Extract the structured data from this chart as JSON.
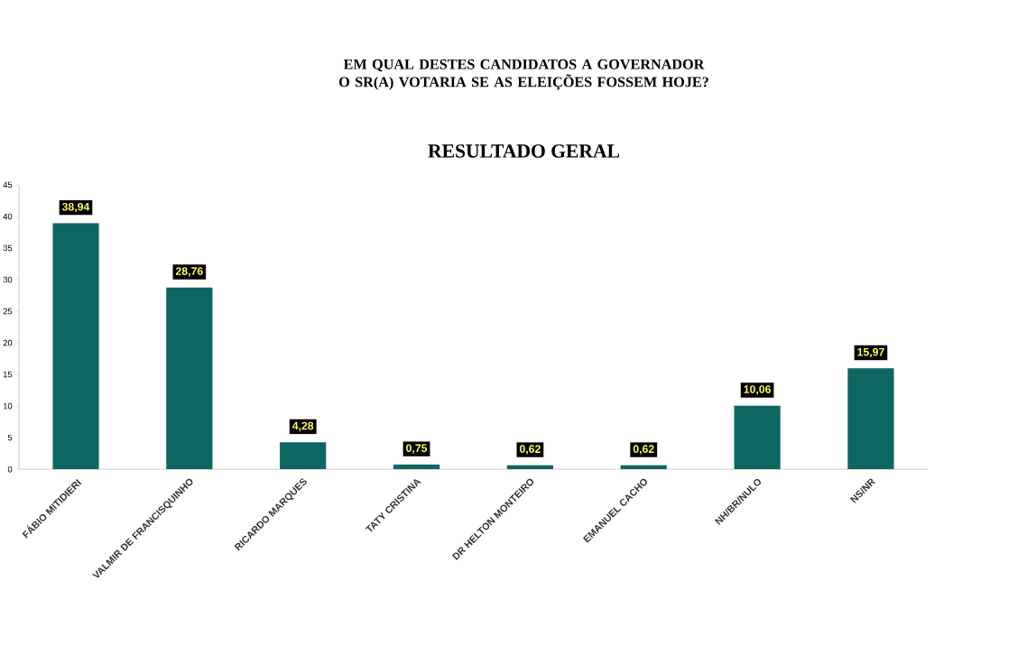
{
  "chart_data": {
    "type": "bar",
    "title": "EM QUAL DESTES CANDIDATOS A GOVERNADOR O SR(A) VOTARIA SE AS ELEIÇÕES FOSSEM HOJE?",
    "subtitle": "RESULTADO GERAL",
    "categories": [
      "FÁBIO MITIDIERI",
      "VALMIR DE FRANCISQUINHO",
      "RICARDO MARQUES",
      "TATY CRISTINA",
      "DR HELTON MONTEIRO",
      "EMANUEL CACHO",
      "NH/BR/NULO",
      "NS/NR"
    ],
    "values": [
      38.94,
      28.76,
      4.28,
      0.75,
      0.62,
      0.62,
      10.06,
      15.97
    ],
    "value_labels": [
      "38,94",
      "28,76",
      "4,28",
      "0,75",
      "0,62",
      "0,62",
      "10,06",
      "15,97"
    ],
    "color": "#0e6660",
    "ylim": [
      0,
      45
    ],
    "yticks": [
      0,
      5,
      10,
      15,
      20,
      25,
      30,
      35,
      40,
      45
    ]
  }
}
